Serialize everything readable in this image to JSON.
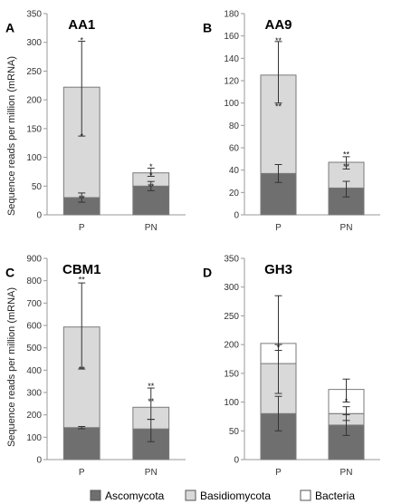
{
  "figure": {
    "ylabel": "Sequence reads per million (mRNA)"
  },
  "colors": {
    "Ascomycota": "#6f6f6f",
    "Basidiomycota": "#d9d9d9",
    "Bacteria": "#ffffff",
    "edge": "#7a7a7a"
  },
  "legend": [
    "Ascomycota",
    "Basidiomycota",
    "Bacteria"
  ],
  "chart_data": [
    {
      "type": "bar",
      "stacked": true,
      "letter": "A",
      "title": "AA1",
      "categories": [
        "P",
        "PN"
      ],
      "ylim": [
        0,
        350
      ],
      "yticks": [
        0,
        50,
        100,
        150,
        200,
        250,
        300,
        350
      ],
      "series": [
        {
          "name": "Ascomycota",
          "values": [
            30,
            50
          ]
        },
        {
          "name": "Basidiomycota",
          "values": [
            192,
            23
          ]
        }
      ],
      "error_bars": [
        {
          "category": "P",
          "value": 30,
          "low": 22,
          "high": 38
        },
        {
          "category": "P",
          "value": 222,
          "low": 137,
          "high": 302
        },
        {
          "category": "PN",
          "value": 50,
          "low": 42,
          "high": 58
        },
        {
          "category": "PN",
          "value": 73,
          "low": 67,
          "high": 81
        }
      ],
      "annotations": [
        {
          "category": "P",
          "value": 27,
          "text": "**"
        },
        {
          "category": "P",
          "value": 135,
          "text": "*"
        },
        {
          "category": "P",
          "value": 302,
          "text": "*"
        },
        {
          "category": "PN",
          "value": 47,
          "text": "**"
        },
        {
          "category": "PN",
          "value": 67,
          "text": "*"
        },
        {
          "category": "PN",
          "value": 82,
          "text": "*"
        }
      ]
    },
    {
      "type": "bar",
      "stacked": true,
      "letter": "B",
      "title": "AA9",
      "categories": [
        "P",
        "PN"
      ],
      "ylim": [
        0,
        180
      ],
      "yticks": [
        0,
        20,
        40,
        60,
        80,
        100,
        120,
        140,
        160,
        180
      ],
      "series": [
        {
          "name": "Ascomycota",
          "values": [
            37,
            24
          ]
        },
        {
          "name": "Basidiomycota",
          "values": [
            88,
            23
          ]
        }
      ],
      "error_bars": [
        {
          "category": "P",
          "value": 37,
          "low": 29,
          "high": 45
        },
        {
          "category": "P",
          "value": 125,
          "low": 100,
          "high": 155
        },
        {
          "category": "PN",
          "value": 24,
          "low": 16,
          "high": 30
        },
        {
          "category": "PN",
          "value": 47,
          "low": 41,
          "high": 52
        }
      ],
      "annotations": [
        {
          "category": "P",
          "value": 96,
          "text": "**"
        },
        {
          "category": "P",
          "value": 155,
          "text": "**"
        },
        {
          "category": "PN",
          "value": 42,
          "text": "**"
        },
        {
          "category": "PN",
          "value": 53,
          "text": "**"
        }
      ]
    },
    {
      "type": "bar",
      "stacked": true,
      "letter": "C",
      "title": "CBM1",
      "categories": [
        "P",
        "PN"
      ],
      "ylim": [
        0,
        900
      ],
      "yticks": [
        0,
        100,
        200,
        300,
        400,
        500,
        600,
        700,
        800,
        900
      ],
      "series": [
        {
          "name": "Ascomycota",
          "values": [
            143,
            137
          ]
        },
        {
          "name": "Basidiomycota",
          "values": [
            450,
            97
          ]
        }
      ],
      "error_bars": [
        {
          "category": "P",
          "value": 143,
          "low": 138,
          "high": 148
        },
        {
          "category": "P",
          "value": 593,
          "low": 405,
          "high": 790
        },
        {
          "category": "PN",
          "value": 137,
          "low": 80,
          "high": 180
        },
        {
          "category": "PN",
          "value": 234,
          "low": 180,
          "high": 320
        }
      ],
      "annotations": [
        {
          "category": "P",
          "value": 400,
          "text": "**"
        },
        {
          "category": "P",
          "value": 800,
          "text": "**"
        },
        {
          "category": "PN",
          "value": 256,
          "text": "**"
        },
        {
          "category": "PN",
          "value": 325,
          "text": "**"
        }
      ]
    },
    {
      "type": "bar",
      "stacked": true,
      "letter": "D",
      "title": "GH3",
      "categories": [
        "P",
        "PN"
      ],
      "ylim": [
        0,
        350
      ],
      "yticks": [
        0,
        50,
        100,
        150,
        200,
        250,
        300,
        350
      ],
      "series": [
        {
          "name": "Ascomycota",
          "values": [
            80,
            60
          ]
        },
        {
          "name": "Basidiomycota",
          "values": [
            87,
            20
          ]
        },
        {
          "name": "Bacteria",
          "values": [
            35,
            42
          ]
        }
      ],
      "error_bars": [
        {
          "category": "P",
          "value": 80,
          "low": 50,
          "high": 110
        },
        {
          "category": "P",
          "value": 167,
          "low": 115,
          "high": 200
        },
        {
          "category": "P",
          "value": 202,
          "low": 190,
          "high": 285
        },
        {
          "category": "PN",
          "value": 60,
          "low": 42,
          "high": 78
        },
        {
          "category": "PN",
          "value": 80,
          "low": 68,
          "high": 92
        },
        {
          "category": "PN",
          "value": 122,
          "low": 100,
          "high": 140
        }
      ],
      "annotations": [
        {
          "category": "P",
          "value": 193,
          "text": "*"
        },
        {
          "category": "PN",
          "value": 99,
          "text": "*"
        }
      ]
    }
  ]
}
